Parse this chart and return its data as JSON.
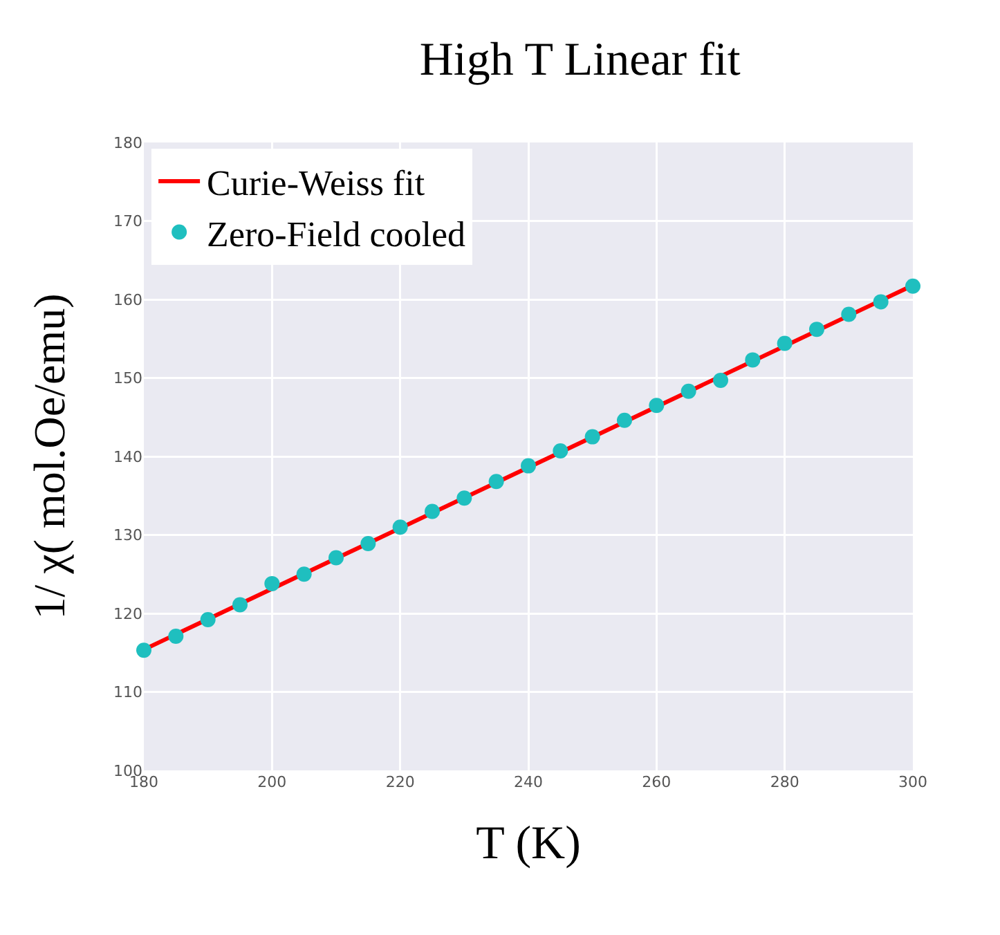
{
  "chart_data": {
    "type": "scatter",
    "title": "High T Linear fit",
    "xlabel": "T (K)",
    "ylabel": "1/ χ( mol.Oe/emu)",
    "xlim": [
      180,
      300
    ],
    "xticks": [
      180,
      200,
      220,
      240,
      260,
      280,
      300
    ],
    "ylim": [
      100,
      180
    ],
    "yticks": [
      100,
      110,
      120,
      130,
      140,
      150,
      160,
      170,
      180
    ],
    "grid": true,
    "legend": "top left",
    "series": [
      {
        "name": "Curie-Weiss fit",
        "type": "line",
        "color": "#ff0000",
        "marker": "none",
        "line_style": "solid",
        "x": [
          180,
          300
        ],
        "values": [
          115.4,
          161.8
        ]
      },
      {
        "name": "Zero-Field cooled",
        "color": "#1fbfbf",
        "marker": "circle",
        "x": [
          180,
          185,
          190,
          195,
          200,
          205,
          210,
          215,
          220,
          225,
          230,
          235,
          240,
          245,
          250,
          255,
          260,
          265,
          270,
          275,
          280,
          285,
          290,
          295,
          300
        ],
        "values": [
          115.3,
          117.1,
          119.2,
          121.1,
          123.8,
          125.0,
          127.1,
          128.9,
          131.0,
          133.0,
          134.7,
          136.8,
          138.8,
          140.7,
          142.5,
          144.6,
          146.5,
          148.3,
          149.7,
          152.3,
          154.4,
          156.2,
          158.1,
          159.7,
          161.7
        ]
      }
    ]
  }
}
